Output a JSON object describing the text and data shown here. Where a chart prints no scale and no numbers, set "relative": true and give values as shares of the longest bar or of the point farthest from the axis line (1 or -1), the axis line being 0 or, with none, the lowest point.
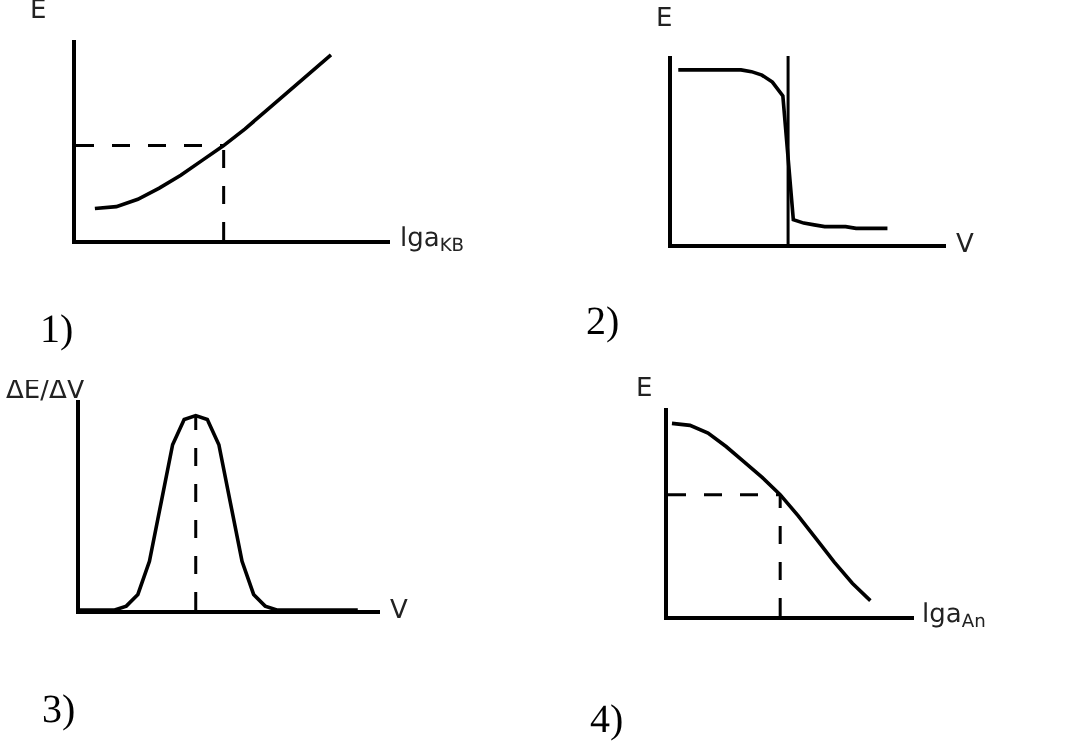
{
  "chart_data": [
    {
      "type": "line",
      "relative": true,
      "ylabel": "E",
      "xlabel": "lga$_{KB}$",
      "annotations": [
        "1)"
      ],
      "marker": "none",
      "line_style": "solid",
      "categories": [
        null,
        null,
        null,
        null,
        null,
        null,
        null,
        null,
        null,
        null,
        null,
        null
      ],
      "series": [
        {
          "color": "#000000",
          "values": [
            0.17,
            0.18,
            0.22,
            0.28,
            0.35,
            0.43,
            0.51,
            0.6,
            0.7,
            0.8,
            0.9,
            1.0
          ]
        }
      ],
      "ref_lines": [
        {
          "axis": "y",
          "value": 0.51,
          "line_style": "dashed",
          "color": "#000000"
        }
      ]
    },
    {
      "type": "line",
      "relative": true,
      "ylabel": "E",
      "xlabel": "V",
      "annotations": [
        "2)"
      ],
      "marker": "none",
      "line_style": "solid",
      "categories": [
        null,
        null,
        null,
        null,
        null,
        null,
        null,
        null,
        null,
        null,
        null,
        null,
        null,
        null,
        null,
        null,
        null,
        null,
        null,
        null,
        null
      ],
      "series": [
        {
          "color": "#000000",
          "values": [
            1.0,
            1.0,
            1.0,
            1.0,
            1.0,
            1.0,
            1.0,
            0.99,
            0.97,
            0.93,
            0.85,
            0.14,
            0.12,
            0.11,
            0.1,
            0.1,
            0.1,
            0.09,
            0.09,
            0.09,
            0.09
          ]
        }
      ]
    },
    {
      "type": "line",
      "relative": true,
      "ylabel": "ΔE/ΔV",
      "xlabel": "V",
      "annotations": [
        "3)"
      ],
      "marker": "none",
      "line_style": "solid",
      "categories": [
        null,
        null,
        null,
        null,
        null,
        null,
        null,
        null,
        null,
        null,
        null,
        null,
        null,
        null,
        null,
        null,
        null,
        null,
        null,
        null,
        null,
        null,
        null,
        null,
        null
      ],
      "series": [
        {
          "color": "#000000",
          "values": [
            0,
            0,
            0,
            0,
            0.02,
            0.08,
            0.25,
            0.55,
            0.85,
            0.98,
            1.0,
            0.98,
            0.85,
            0.55,
            0.25,
            0.08,
            0.02,
            0,
            0,
            0,
            0,
            0,
            0,
            0,
            0
          ]
        }
      ]
    },
    {
      "type": "line",
      "relative": true,
      "ylabel": "E",
      "xlabel": "lga$_{An}$",
      "annotations": [
        "4)"
      ],
      "marker": "none",
      "line_style": "solid",
      "categories": [
        null,
        null,
        null,
        null,
        null,
        null,
        null,
        null,
        null,
        null,
        null,
        null
      ],
      "series": [
        {
          "color": "#000000",
          "values": [
            1.0,
            0.99,
            0.95,
            0.88,
            0.8,
            0.72,
            0.63,
            0.52,
            0.4,
            0.28,
            0.17,
            0.08
          ]
        }
      ],
      "ref_lines": [
        {
          "axis": "y",
          "value": 0.63,
          "line_style": "dashed",
          "color": "#000000"
        }
      ]
    }
  ]
}
